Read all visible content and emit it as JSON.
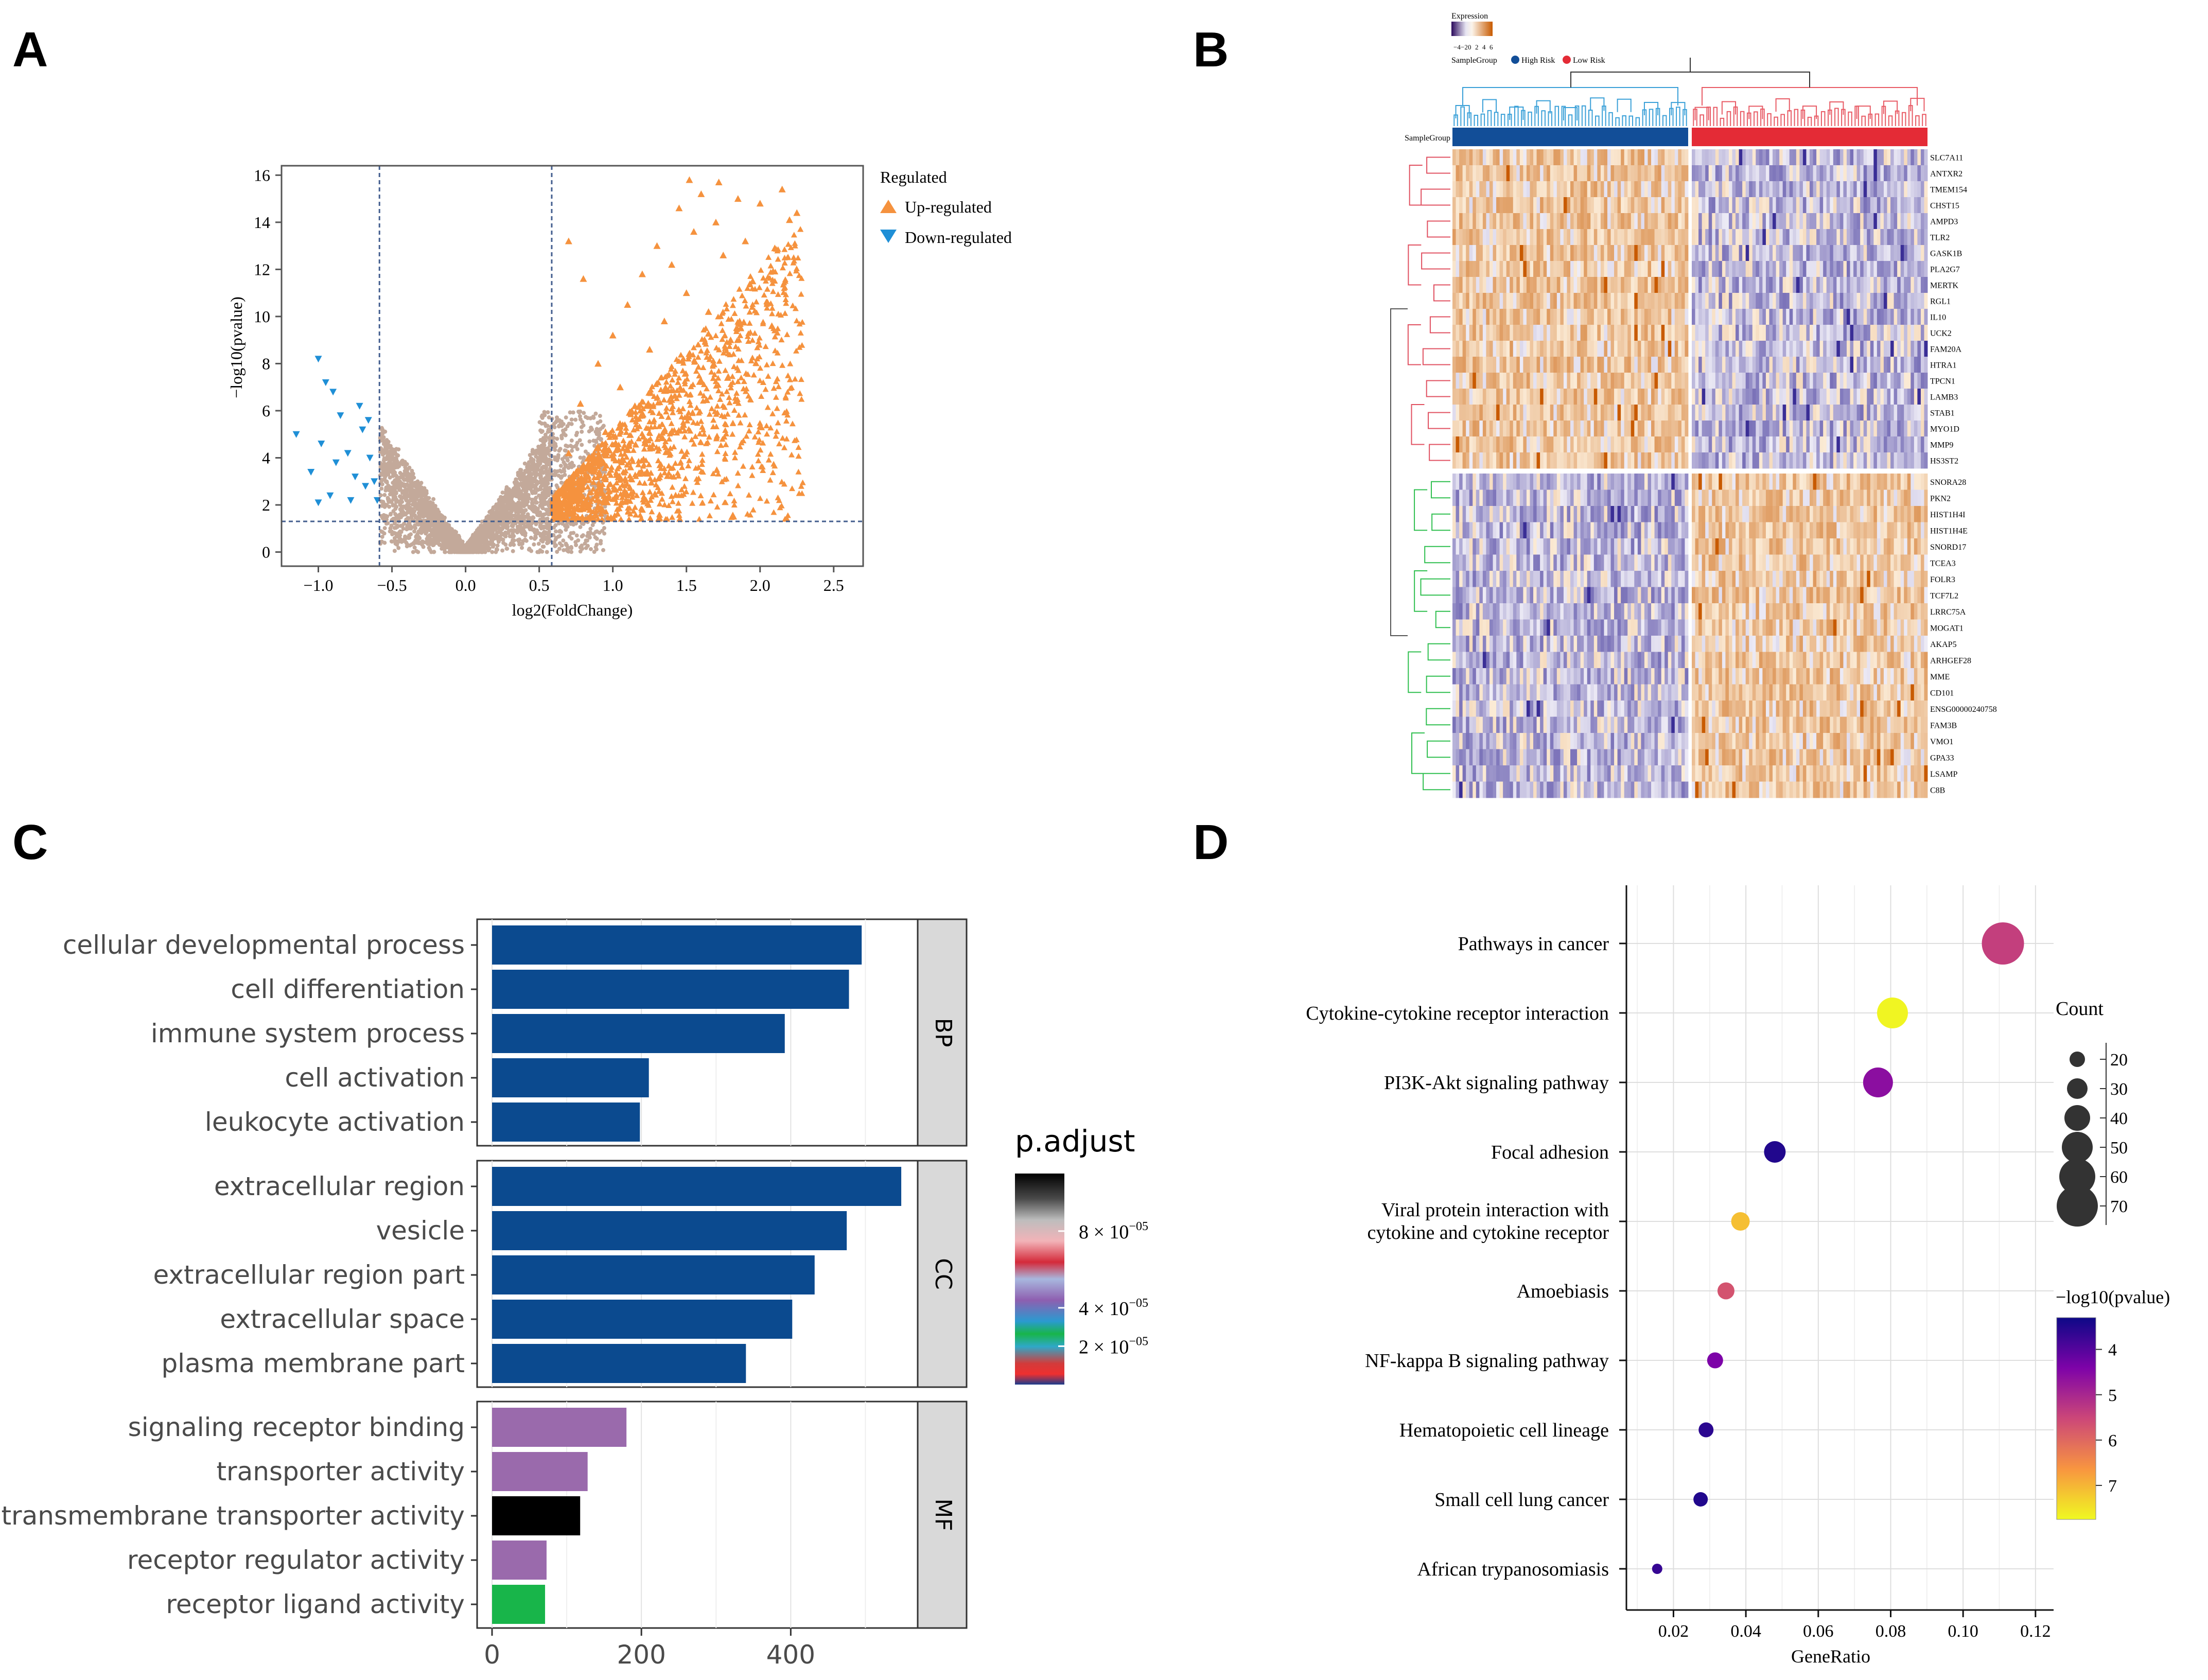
{
  "panels": [
    "A",
    "B",
    "C",
    "D"
  ],
  "colors": {
    "up": "#f5923e",
    "down": "#1f8fd6",
    "ns": "#b89a88",
    "bar_navy": "#0b4a8f",
    "bar_purple": "#9a6aac",
    "bar_black": "#000000",
    "bar_green": "#18b54a",
    "high_risk": "#124e98",
    "low_risk": "#e42b36"
  },
  "chart_data": [
    {
      "type": "scatter",
      "panel": "A",
      "title": "",
      "xlabel": "log2(FoldChange)",
      "ylabel": "−log10(pvalue)",
      "xlim": [
        -1.25,
        2.7
      ],
      "ylim": [
        -0.6,
        16.4
      ],
      "xticks": [
        -1.0,
        -0.5,
        0.0,
        0.5,
        1.0,
        1.5,
        2.0,
        2.5
      ],
      "xtick_labels": [
        "−1.0",
        "−0.5",
        "0.0",
        "0.5",
        "1.0",
        "1.5",
        "2.0",
        "2.5"
      ],
      "yticks": [
        0,
        2,
        4,
        6,
        8,
        10,
        12,
        14,
        16
      ],
      "ytick_labels": [
        "0",
        "2",
        "4",
        "6",
        "8",
        "10",
        "12",
        "14",
        "16"
      ],
      "thresholds": {
        "x": [
          -0.585,
          0.585
        ],
        "y": 1.3
      },
      "legend": {
        "title": "Regulated",
        "items": [
          "Up-regulated",
          "Down-regulated"
        ],
        "placement": "outside-right"
      },
      "series": [
        {
          "name": "Up-regulated",
          "marker": "triangle-up",
          "points": [
            [
              0.62,
              2.1
            ],
            [
              0.7,
              4.2
            ],
            [
              0.78,
              6.3
            ],
            [
              0.85,
              3.5
            ],
            [
              0.9,
              8.0
            ],
            [
              0.95,
              5.1
            ],
            [
              1.0,
              9.2
            ],
            [
              1.05,
              7.0
            ],
            [
              1.1,
              10.5
            ],
            [
              1.15,
              6.2
            ],
            [
              1.2,
              11.8
            ],
            [
              1.25,
              8.6
            ],
            [
              1.3,
              13.0
            ],
            [
              1.35,
              9.8
            ],
            [
              1.4,
              12.2
            ],
            [
              1.45,
              14.6
            ],
            [
              1.5,
              11.0
            ],
            [
              1.55,
              13.6
            ],
            [
              1.6,
              15.2
            ],
            [
              1.65,
              10.2
            ],
            [
              1.7,
              14.0
            ],
            [
              1.75,
              12.6
            ],
            [
              1.8,
              9.0
            ],
            [
              1.85,
              15.0
            ],
            [
              1.9,
              13.2
            ],
            [
              1.95,
              11.5
            ],
            [
              2.0,
              14.8
            ],
            [
              2.05,
              10.6
            ],
            [
              2.1,
              12.9
            ],
            [
              2.15,
              15.4
            ],
            [
              2.2,
              14.1
            ],
            [
              2.25,
              14.4
            ],
            [
              1.52,
              15.8
            ],
            [
              1.72,
              15.7
            ],
            [
              0.7,
              13.2
            ],
            [
              0.8,
              11.6
            ],
            [
              1.12,
              3.6
            ],
            [
              1.48,
              5.4
            ],
            [
              1.78,
              7.4
            ],
            [
              2.08,
              9.6
            ],
            [
              1.2,
              1.8
            ],
            [
              1.08,
              2.6
            ]
          ]
        },
        {
          "name": "Down-regulated",
          "marker": "triangle-down",
          "points": [
            [
              -1.0,
              8.2
            ],
            [
              -0.95,
              7.2
            ],
            [
              -0.9,
              6.8
            ],
            [
              -1.15,
              5.0
            ],
            [
              -0.98,
              4.6
            ],
            [
              -1.05,
              3.4
            ],
            [
              -0.92,
              2.4
            ],
            [
              -0.85,
              5.8
            ],
            [
              -0.8,
              4.2
            ],
            [
              -0.75,
              3.2
            ],
            [
              -0.7,
              5.2
            ],
            [
              -0.68,
              2.8
            ],
            [
              -0.65,
              4.0
            ],
            [
              -0.62,
              3.0
            ],
            [
              -0.6,
              2.2
            ],
            [
              -0.72,
              6.2
            ],
            [
              -0.78,
              2.2
            ],
            [
              -0.66,
              5.6
            ],
            [
              -1.0,
              2.1
            ],
            [
              -0.88,
              3.8
            ]
          ]
        }
      ]
    },
    {
      "type": "heatmap",
      "panel": "B",
      "title": "",
      "legend": {
        "title": "Expression",
        "ticks": [
          "−4",
          "−2",
          "0",
          "2",
          "4",
          "6"
        ],
        "group_title": "SampleGroup",
        "groups": [
          "High Risk",
          "Low Risk"
        ]
      },
      "annotation_label": "SampleGroup",
      "columns": {
        "High Risk": 70,
        "Low Risk": 70
      },
      "row_clusters": [
        {
          "cluster": "up",
          "genes": [
            "SLC7A11",
            "ANTXR2",
            "TMEM154",
            "CHST15",
            "AMPD3",
            "TLR2",
            "GASK1B",
            "PLA2G7",
            "MERTK",
            "RGL1",
            "IL10",
            "UCK2",
            "FAM20A",
            "HTRA1",
            "TPCN1",
            "LAMB3",
            "STAB1",
            "MYO1D",
            "MMP9",
            "HS3ST2"
          ]
        },
        {
          "cluster": "down",
          "genes": [
            "SNORA28",
            "PKN2",
            "HIST1H4I",
            "HIST1H4E",
            "SNORD17",
            "TCEA3",
            "FOLR3",
            "TCF7L2",
            "LRRC75A",
            "MOGAT1",
            "AKAP5",
            "ARHGEF28",
            "MME",
            "CD101",
            "ENSG00000240758",
            "FAM3B",
            "VMO1",
            "GPA33",
            "LSAMP",
            "C8B"
          ]
        }
      ]
    },
    {
      "type": "bar",
      "panel": "C",
      "orientation": "horizontal",
      "title": "",
      "xlabel": "",
      "xlim": [
        -20,
        570
      ],
      "xticks": [
        0,
        200,
        400
      ],
      "legend": {
        "title": "p.adjust",
        "ticks": [
          "8 × 10",
          "4 × 10",
          "2 × 10"
        ],
        "tick_values": [
          8e-05,
          4e-05,
          2e-05
        ],
        "exponent": "−05",
        "range": [
          0,
          0.00011
        ]
      },
      "facets": [
        {
          "name": "BP",
          "categories": [
            "cellular developmental process",
            "cell differentiation",
            "immune system process",
            "cell activation",
            "leukocyte activation"
          ],
          "values": [
            495,
            478,
            392,
            210,
            198
          ]
        },
        {
          "name": "CC",
          "categories": [
            "extracellular region",
            "vesicle",
            "extracellular region part",
            "extracellular space",
            "plasma membrane part"
          ],
          "values": [
            548,
            475,
            432,
            402,
            340
          ]
        },
        {
          "name": "MF",
          "categories": [
            "signaling receptor binding",
            "transporter activity",
            "transmembrane transporter activity",
            "receptor regulator activity",
            "receptor ligand activity"
          ],
          "values": [
            180,
            128,
            118,
            73,
            71
          ]
        }
      ]
    },
    {
      "type": "scatter",
      "panel": "D",
      "title": "",
      "xlabel": "GeneRatio",
      "xlim": [
        0.007,
        0.125
      ],
      "xticks": [
        0.02,
        0.04,
        0.06,
        0.08,
        0.1,
        0.12
      ],
      "xtick_labels": [
        "0.02",
        "0.04",
        "0.06",
        "0.08",
        "0.10",
        "0.12"
      ],
      "size_legend": {
        "title": "Count",
        "values": [
          20,
          30,
          40,
          50,
          60,
          70
        ]
      },
      "color_legend": {
        "title": "−log10(pvalue)",
        "ticks": [
          4,
          5,
          6,
          7
        ],
        "range": [
          3.3,
          7.75
        ]
      },
      "categories": [
        "Pathways in cancer",
        "Cytokine-cytokine receptor interaction",
        "PI3K-Akt signaling pathway",
        "Focal adhesion",
        "Viral protein interaction with",
        "Amoebiasis",
        "NF-kappa B signaling pathway",
        "Hematopoietic cell lineage",
        "Small cell lung cancer",
        "African trypanosomiasis"
      ],
      "category_second_lines": [
        "",
        "",
        "",
        "",
        "cytokine and cytokine receptor",
        "",
        "",
        "",
        "",
        ""
      ],
      "gene_ratio": [
        0.111,
        0.0805,
        0.0765,
        0.048,
        0.0385,
        0.0345,
        0.0315,
        0.029,
        0.0275,
        0.0155
      ],
      "count": [
        72,
        50,
        48,
        32,
        26,
        23,
        21,
        19,
        18,
        10
      ],
      "neg_log10_p": [
        5.4,
        7.7,
        4.6,
        3.5,
        7.1,
        5.7,
        4.4,
        3.6,
        3.5,
        3.7
      ]
    }
  ]
}
